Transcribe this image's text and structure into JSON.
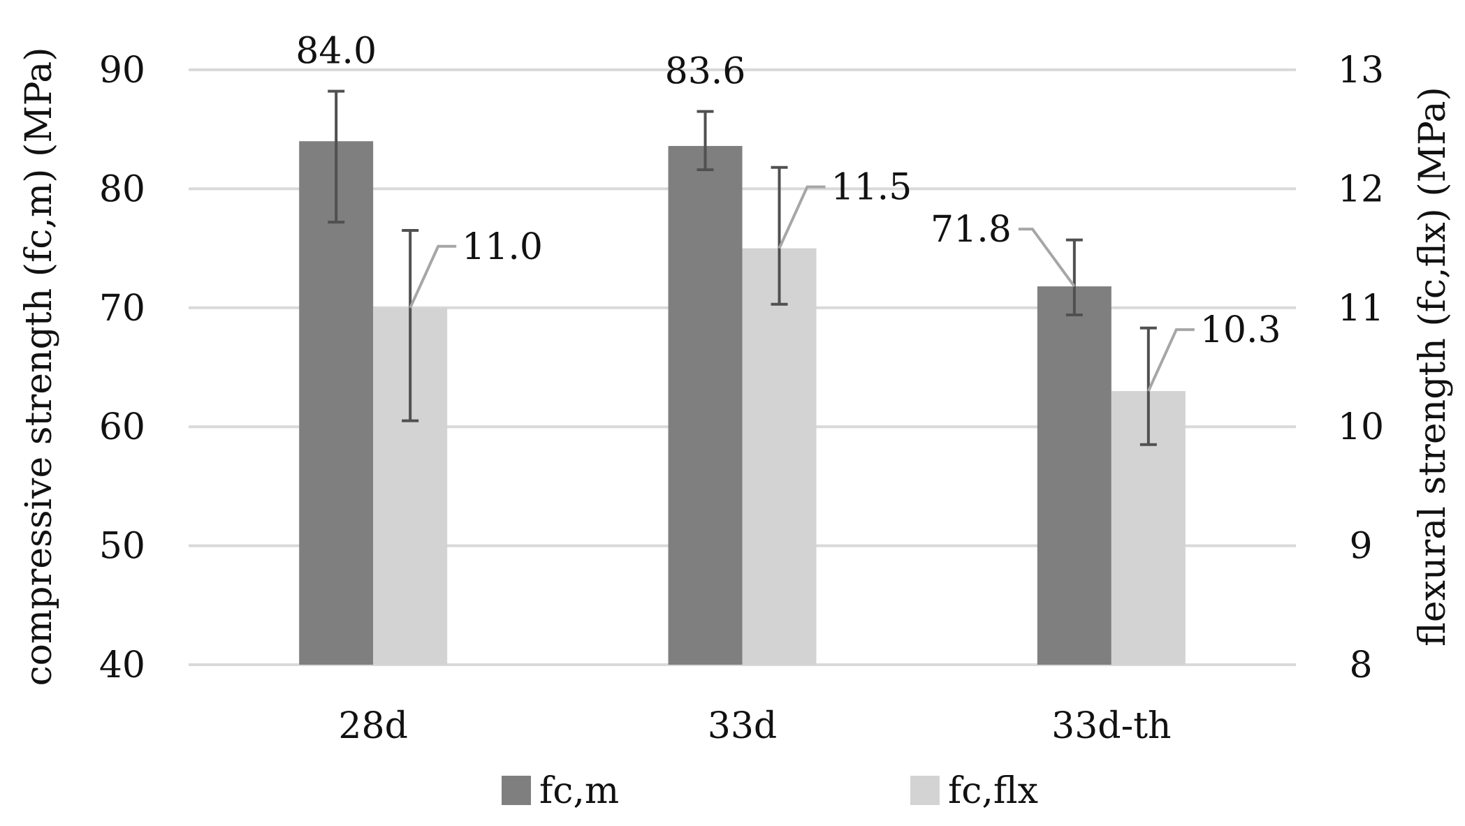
{
  "chart_data": {
    "type": "bar",
    "categories": [
      "28d",
      "33d",
      "33d-th"
    ],
    "series": [
      {
        "name": "fc,m",
        "axis": "left",
        "color": "#7f7f7f",
        "values": [
          84.0,
          83.6,
          71.8
        ],
        "error_low": [
          77.2,
          81.6,
          69.4
        ],
        "error_high": [
          88.2,
          86.5,
          75.7
        ],
        "data_labels": [
          "84.0",
          "83.6",
          "71.8"
        ]
      },
      {
        "name": "fc,flx",
        "axis": "right",
        "color": "#d3d3d3",
        "values": [
          11.0,
          11.5,
          10.3
        ],
        "error_low": [
          10.05,
          11.03,
          9.85
        ],
        "error_high": [
          11.65,
          12.18,
          10.83
        ],
        "data_labels": [
          "11.0",
          "11.5",
          "10.3"
        ]
      }
    ],
    "ylabel": "compressive strength (fc,m) (MPa)",
    "y2label": "flexural strength (fc,flx) (MPa)",
    "ylim": [
      40,
      90
    ],
    "y2lim": [
      8,
      13
    ],
    "yticks": [
      "40",
      "50",
      "60",
      "70",
      "80",
      "90"
    ],
    "y2ticks": [
      "8",
      "9",
      "10",
      "11",
      "12",
      "13"
    ],
    "grid": true,
    "legend": "bottom"
  }
}
